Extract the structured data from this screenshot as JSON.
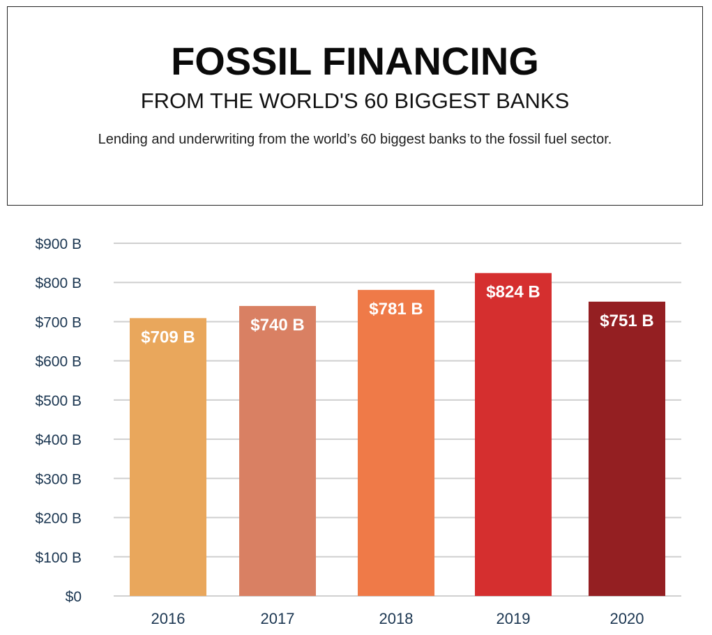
{
  "header": {
    "title": "FOSSIL FINANCING",
    "subtitle": "FROM THE WORLD'S 60 BIGGEST BANKS",
    "description": "Lending and underwriting from the world’s 60 biggest banks to the fossil fuel sector."
  },
  "colors": {
    "gridline": "#cfcfcf",
    "axis_text": "#1a3550",
    "bar_label": "#ffffff"
  },
  "chart_data": {
    "type": "bar",
    "title": "FOSSIL FINANCING",
    "subtitle": "FROM THE WORLD'S 60 BIGGEST BANKS",
    "xlabel": "",
    "ylabel": "",
    "categories": [
      "2016",
      "2017",
      "2018",
      "2019",
      "2020"
    ],
    "values": [
      709,
      740,
      781,
      824,
      751
    ],
    "data_labels": [
      "$709 B",
      "$740 B",
      "$781 B",
      "$824 B",
      "$751 B"
    ],
    "bar_colors": [
      "#e9a75c",
      "#d98063",
      "#ef7a48",
      "#d52f2f",
      "#941f22"
    ],
    "ylim": [
      0,
      900
    ],
    "y_ticks": [
      0,
      100,
      200,
      300,
      400,
      500,
      600,
      700,
      800,
      900
    ],
    "y_tick_labels": [
      "$0",
      "$100 B",
      "$200 B",
      "$300 B",
      "$400 B",
      "$500 B",
      "$600 B",
      "$700 B",
      "$800 B",
      "$900 B"
    ],
    "grid": true,
    "legend": "none"
  }
}
